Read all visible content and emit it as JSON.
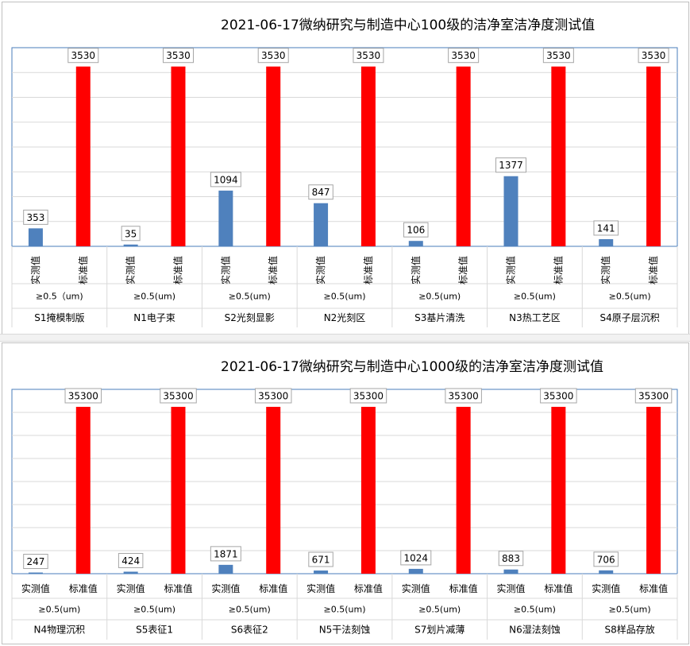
{
  "chart_data": [
    {
      "type": "bar",
      "title": "2021-06-17微纳研究与制造中心100级的洁净室洁净度测试值",
      "series_labels": [
        "实测值",
        "标准值"
      ],
      "colors": {
        "measured": "#4f81bd",
        "standard": "#ff0000"
      },
      "ylim": [
        0,
        3900
      ],
      "groups": [
        {
          "particle": "≥0.5（um)",
          "room": "S1掩模制版",
          "measured": 353,
          "standard": 3530
        },
        {
          "particle": "≥0.5(um)",
          "room": "N1电子束",
          "measured": 35,
          "standard": 3530
        },
        {
          "particle": "≥0.5(um)",
          "room": "S2光刻显影",
          "measured": 1094,
          "standard": 3530
        },
        {
          "particle": "≥0.5(um)",
          "room": "N2光刻区",
          "measured": 847,
          "standard": 3530
        },
        {
          "particle": "≥0.5(um)",
          "room": "S3基片清洗",
          "measured": 106,
          "standard": 3530
        },
        {
          "particle": "≥0.5(um)",
          "room": "N3热工艺区",
          "measured": 1377,
          "standard": 3530
        },
        {
          "particle": "≥0.5(um)",
          "room": "S4原子层沉积",
          "measured": 141,
          "standard": 3530
        }
      ]
    },
    {
      "type": "bar",
      "title": "2021-06-17微纳研究与制造中心1000级的洁净室洁净度测试值",
      "series_labels": [
        "实测值",
        "标准值"
      ],
      "colors": {
        "measured": "#4f81bd",
        "standard": "#ff0000"
      },
      "ylim": [
        0,
        39000
      ],
      "groups": [
        {
          "particle": "≥0.5(um)",
          "room": "N4物理沉积",
          "measured": 247,
          "standard": 35300
        },
        {
          "particle": "≥0.5(um)",
          "room": "S5表征1",
          "measured": 424,
          "standard": 35300
        },
        {
          "particle": "≥0.5(um)",
          "room": "S6表征2",
          "measured": 1871,
          "standard": 35300
        },
        {
          "particle": "≥0.5(um)",
          "room": "N5干法刻蚀",
          "measured": 671,
          "standard": 35300
        },
        {
          "particle": "≥0.5(um)",
          "room": "S7划片减薄",
          "measured": 1024,
          "standard": 35300
        },
        {
          "particle": "≥0.5(um)",
          "room": "N6湿法刻蚀",
          "measured": 883,
          "standard": 35300
        },
        {
          "particle": "≥0.5(um)",
          "room": "S8样品存放",
          "measured": 706,
          "standard": 35300
        }
      ]
    }
  ]
}
